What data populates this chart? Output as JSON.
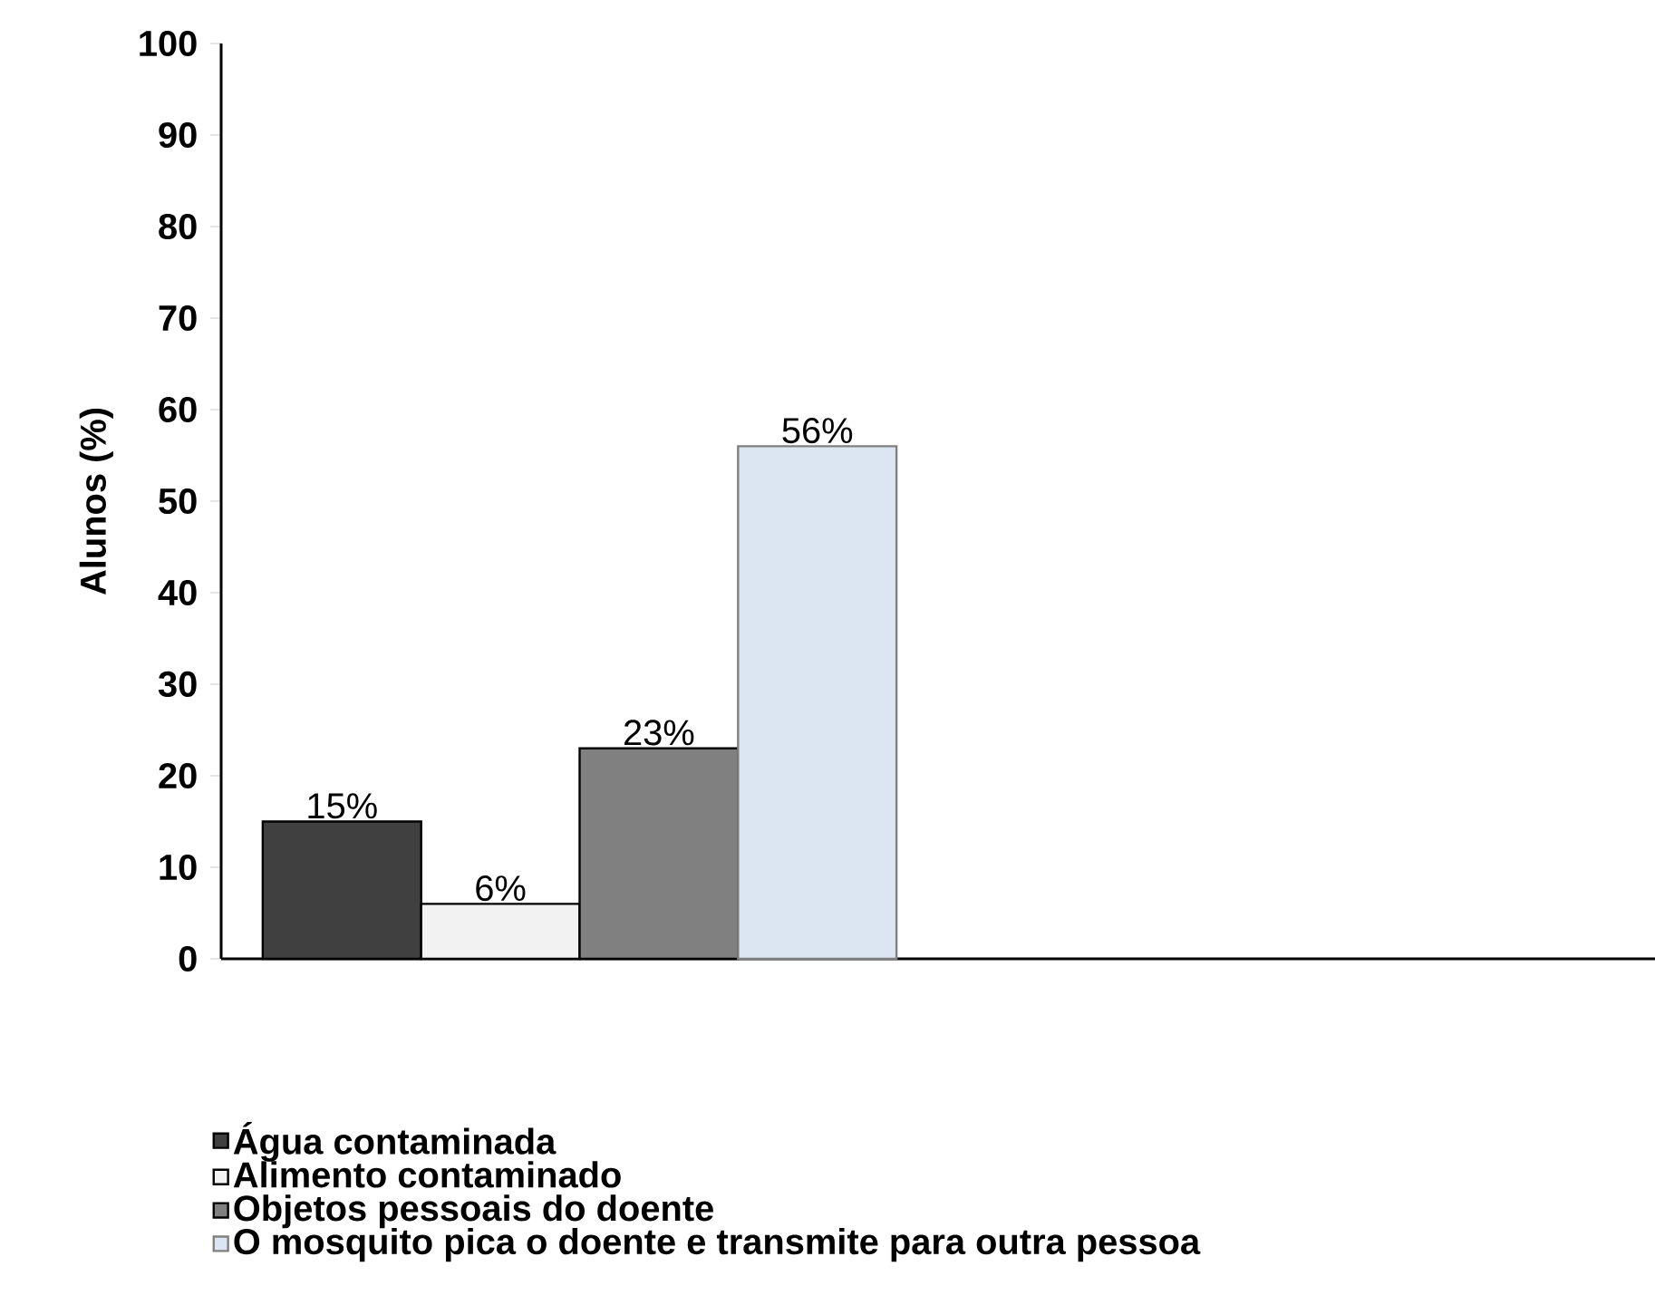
{
  "chart_data": {
    "type": "bar",
    "ylabel": "Alunos (%)",
    "categories": [
      null,
      null
    ],
    "series": [
      {
        "name": "Água contaminada",
        "color": "#404040",
        "values": [
          15,
          null
        ],
        "value_labels": [
          "15%",
          null
        ]
      },
      {
        "name": "Alimento contaminado",
        "color": "#f2f2f2",
        "values": [
          6,
          null
        ],
        "value_labels": [
          "6%",
          null
        ]
      },
      {
        "name": "Objetos pessoais do doente",
        "color": "#808080",
        "values": [
          23,
          null
        ],
        "value_labels": [
          "23%",
          null
        ]
      },
      {
        "name": "O mosquito pica o doente e transmite para outra pessoa",
        "color": "#dce6f2",
        "values": [
          56,
          null
        ],
        "value_labels": [
          "56%",
          null
        ]
      }
    ],
    "ylim": [
      0,
      100
    ],
    "yticks": [
      0,
      10,
      20,
      30,
      40,
      50,
      60,
      70,
      80,
      90,
      100
    ],
    "grid": false,
    "legend": "bottom left"
  }
}
